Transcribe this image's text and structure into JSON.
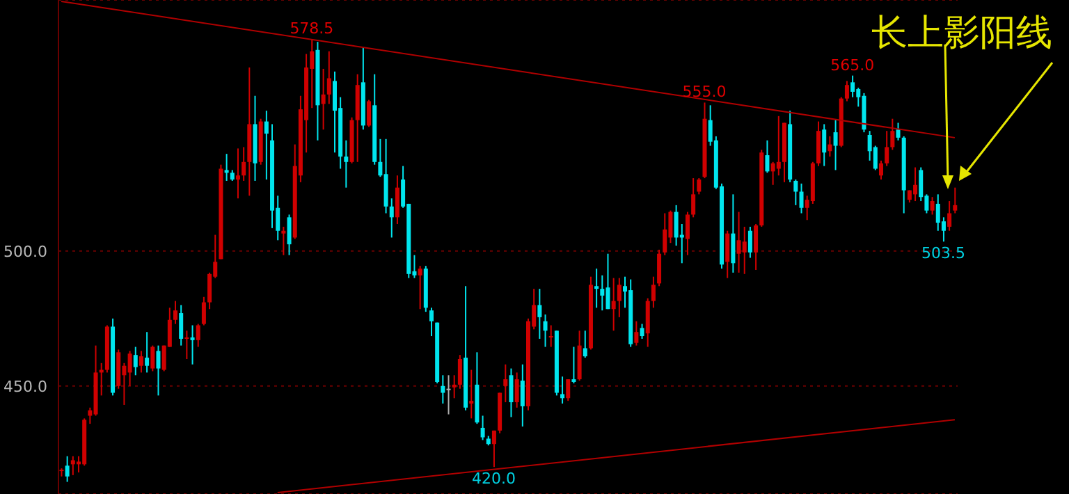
{
  "chart_data": {
    "type": "candlestick",
    "categories": [
      null,
      null,
      null,
      null,
      null,
      null,
      null,
      null,
      null,
      null,
      null,
      null,
      null,
      null,
      null,
      null,
      null,
      null,
      null,
      null,
      null,
      null,
      null,
      null,
      null,
      null,
      null,
      null,
      null,
      null,
      null,
      null,
      null,
      null,
      null,
      null,
      null,
      null,
      null,
      null,
      null,
      null,
      null,
      null,
      null,
      null,
      null,
      null,
      null,
      null,
      null,
      null,
      null,
      null,
      null,
      null,
      null,
      null,
      null,
      null,
      null,
      null,
      null,
      null,
      null,
      null,
      null,
      null,
      null,
      null,
      null,
      null,
      null,
      null,
      null,
      null,
      null,
      null,
      null,
      null,
      null,
      null,
      null,
      null,
      null,
      null,
      null,
      null,
      null,
      null,
      null,
      null,
      null,
      null,
      null,
      null,
      null,
      null,
      null,
      null,
      null,
      null,
      null,
      null,
      null,
      null,
      null,
      null,
      null,
      null,
      null,
      null,
      null,
      null,
      null,
      null,
      null,
      null,
      null,
      null,
      null,
      null,
      null,
      null,
      null,
      null,
      null,
      null,
      null,
      null,
      null,
      null,
      null,
      null,
      null,
      null,
      null,
      null,
      null,
      null,
      null,
      null,
      null,
      null,
      null,
      null,
      null,
      null,
      null,
      null,
      null,
      null,
      null,
      null,
      null,
      null,
      null,
      null
    ],
    "ohlc": [
      [
        418.5,
        419.5,
        416.5,
        419
      ],
      [
        420.5,
        424,
        414.5,
        416.5
      ],
      [
        421,
        424,
        417,
        422.5
      ],
      [
        421,
        424,
        418,
        422
      ],
      [
        421,
        438,
        420.5,
        437.5
      ],
      [
        439,
        442,
        436,
        441
      ],
      [
        439.5,
        465,
        439,
        455
      ],
      [
        455,
        458.5,
        446.5,
        456
      ],
      [
        456,
        472.5,
        455,
        472
      ],
      [
        472,
        475,
        446.5,
        447.5
      ],
      [
        450,
        463.5,
        449,
        462.5
      ],
      [
        454,
        458.5,
        443,
        457.5
      ],
      [
        455,
        463,
        450,
        462
      ],
      [
        461.5,
        464.5,
        454,
        457
      ],
      [
        457.5,
        463,
        455,
        461
      ],
      [
        460.5,
        470,
        455,
        457.5
      ],
      [
        456.5,
        465,
        455.5,
        464.5
      ],
      [
        463,
        465,
        446.5,
        456.5
      ],
      [
        456,
        465,
        455.5,
        465
      ],
      [
        464.5,
        479,
        464.5,
        474.5
      ],
      [
        474.5,
        481.5,
        473,
        478
      ],
      [
        477,
        480,
        465,
        467.5
      ],
      [
        467.5,
        470.5,
        460,
        468
      ],
      [
        468,
        472.5,
        458,
        467
      ],
      [
        467,
        473,
        464.5,
        472.5
      ],
      [
        473,
        483,
        472.5,
        481
      ],
      [
        481,
        492,
        478.5,
        491.5
      ],
      [
        490.5,
        506,
        490,
        496
      ],
      [
        497,
        532,
        497,
        530.5
      ],
      [
        530,
        536,
        526,
        529
      ],
      [
        529,
        530,
        526,
        526.5
      ],
      [
        526.5,
        538,
        519.5,
        528
      ],
      [
        528,
        538.5,
        526,
        533
      ],
      [
        533,
        568,
        520.5,
        547
      ],
      [
        547,
        557.5,
        526,
        532.5
      ],
      [
        533,
        549,
        532,
        548
      ],
      [
        548,
        552,
        526.5,
        543.5
      ],
      [
        541,
        547,
        508.5,
        515
      ],
      [
        516,
        520.5,
        504,
        507.5
      ],
      [
        506.5,
        509,
        498.5,
        507.5
      ],
      [
        512.5,
        513.5,
        498.5,
        502.5
      ],
      [
        505,
        539.5,
        504.5,
        531.5
      ],
      [
        528,
        557.5,
        525.5,
        552.5
      ],
      [
        548.5,
        573,
        536.5,
        568
      ],
      [
        567.5,
        578.5,
        553,
        574
      ],
      [
        574.5,
        577.5,
        541,
        554
      ],
      [
        554.5,
        567.5,
        545,
        558
      ],
      [
        558,
        574,
        554.5,
        564
      ],
      [
        563,
        566.5,
        536.5,
        552
      ],
      [
        553,
        557,
        530.5,
        535
      ],
      [
        535,
        541,
        523.5,
        533
      ],
      [
        533,
        549.5,
        532.5,
        548.5
      ],
      [
        548.5,
        565.5,
        533,
        561.5
      ],
      [
        562.5,
        575.5,
        545,
        546.5
      ],
      [
        546.5,
        556,
        546,
        555.5
      ],
      [
        554,
        565.5,
        532,
        533
      ],
      [
        533,
        541.5,
        527.5,
        528
      ],
      [
        528.5,
        541.5,
        514,
        516.5
      ],
      [
        516.5,
        519.5,
        505,
        512.5
      ],
      [
        512.5,
        528,
        510,
        523.5
      ],
      [
        526.5,
        531.5,
        516,
        516.5
      ],
      [
        517.5,
        517.5,
        490,
        491.5
      ],
      [
        492.5,
        498.5,
        490,
        491
      ],
      [
        491,
        494.5,
        478.5,
        493.5
      ],
      [
        493.5,
        494.5,
        477.5,
        479
      ],
      [
        478,
        479,
        468.5,
        474
      ],
      [
        473.5,
        473.5,
        451,
        451.5
      ],
      [
        450,
        454,
        443.5,
        447.5
      ],
      [
        449,
        454,
        439.5,
        449
      ],
      [
        449.5,
        454,
        445.5,
        450.5
      ],
      [
        450.5,
        461.5,
        449,
        460
      ],
      [
        460.5,
        487,
        441,
        442
      ],
      [
        443.5,
        456,
        438,
        444.5
      ],
      [
        450.5,
        462.5,
        436,
        436.5
      ],
      [
        434.5,
        439,
        430,
        431
      ],
      [
        430.5,
        431.5,
        428,
        428.5
      ],
      [
        428.5,
        433.5,
        420,
        433.5
      ],
      [
        433.5,
        447.5,
        432.5,
        447.5
      ],
      [
        450,
        458,
        444,
        452.5
      ],
      [
        454,
        456.5,
        438.5,
        444
      ],
      [
        444,
        455,
        442,
        452.5
      ],
      [
        452,
        458,
        435,
        442.5
      ],
      [
        442.5,
        475,
        441,
        474
      ],
      [
        472,
        486,
        471,
        480
      ],
      [
        480,
        486,
        467.5,
        475.5
      ],
      [
        474,
        476.5,
        464.5,
        470.5
      ],
      [
        468,
        472.5,
        464.5,
        468.5
      ],
      [
        470.5,
        470.5,
        446.5,
        447.5
      ],
      [
        447,
        453.5,
        443.5,
        445.5
      ],
      [
        445.5,
        452.5,
        444.5,
        452.5
      ],
      [
        452.5,
        464.5,
        451,
        451.5
      ],
      [
        452.5,
        470.5,
        452,
        465
      ],
      [
        464,
        470.5,
        460.5,
        461
      ],
      [
        464,
        490.5,
        463.5,
        487.5
      ],
      [
        487,
        493.5,
        479,
        486
      ],
      [
        486,
        491,
        478,
        483.5
      ],
      [
        486.5,
        499,
        478.5,
        478.5
      ],
      [
        478.5,
        490,
        470.5,
        481.5
      ],
      [
        481.5,
        490,
        475.5,
        487.5
      ],
      [
        487,
        490.5,
        479,
        485
      ],
      [
        485.5,
        489.5,
        464.5,
        465.5
      ],
      [
        466,
        474,
        465,
        470
      ],
      [
        471.5,
        473,
        467.5,
        468.5
      ],
      [
        469.5,
        482.5,
        464.5,
        481.5
      ],
      [
        481.5,
        490.5,
        479,
        487.5
      ],
      [
        488,
        500.5,
        487,
        499
      ],
      [
        499.5,
        514,
        498.5,
        508
      ],
      [
        505,
        515,
        503,
        514.5
      ],
      [
        514.5,
        517,
        502,
        505
      ],
      [
        506,
        510,
        495.5,
        505
      ],
      [
        504.5,
        514.5,
        498.5,
        513.5
      ],
      [
        513.5,
        527,
        512.5,
        521
      ],
      [
        522,
        527,
        521,
        526.5
      ],
      [
        527.5,
        555,
        527,
        549
      ],
      [
        548.5,
        554,
        539,
        540.5
      ],
      [
        541,
        542.5,
        523,
        523.5
      ],
      [
        524,
        525,
        493.5,
        495
      ],
      [
        496,
        507.5,
        490,
        506.5
      ],
      [
        506.5,
        521,
        492,
        495.5
      ],
      [
        499,
        514.5,
        492,
        504
      ],
      [
        499.5,
        509,
        491.5,
        503.5
      ],
      [
        507.5,
        509,
        497.5,
        499.5
      ],
      [
        499.5,
        510,
        493,
        509.5
      ],
      [
        509.5,
        537.5,
        509,
        536.5
      ],
      [
        535.5,
        541,
        529,
        529.5
      ],
      [
        529.5,
        533,
        524.5,
        532.5
      ],
      [
        530.5,
        550,
        528,
        533
      ],
      [
        533,
        547.5,
        525.5,
        547.5
      ],
      [
        547,
        552,
        525.5,
        526.5
      ],
      [
        526,
        526.5,
        517,
        522
      ],
      [
        522,
        525,
        514,
        516
      ],
      [
        516,
        520.5,
        511.5,
        519
      ],
      [
        518.5,
        533,
        517.5,
        532.5
      ],
      [
        532.5,
        548,
        531.5,
        544.5
      ],
      [
        545,
        547,
        531.5,
        536.5
      ],
      [
        537,
        542.5,
        535,
        539.5
      ],
      [
        544,
        548.5,
        530,
        539
      ],
      [
        539,
        557,
        538.5,
        556.5
      ],
      [
        556.5,
        563,
        555.5,
        561.5
      ],
      [
        562.5,
        565,
        557,
        559
      ],
      [
        560,
        560.5,
        553.5,
        557
      ],
      [
        557.5,
        558.5,
        544,
        545
      ],
      [
        543,
        544.5,
        533.5,
        537
      ],
      [
        538.5,
        539,
        530,
        530.5
      ],
      [
        528,
        533.5,
        526.5,
        532.5
      ],
      [
        532.5,
        544.5,
        531.5,
        538.5
      ],
      [
        538.5,
        549,
        537.5,
        544.5
      ],
      [
        545,
        547.5,
        541,
        542
      ],
      [
        542,
        542.5,
        514,
        522.5
      ],
      [
        519,
        522.5,
        518,
        522.5
      ],
      [
        521,
        531,
        518.5,
        524.5
      ],
      [
        530,
        531,
        518.5,
        520
      ],
      [
        520.5,
        521,
        514,
        515
      ],
      [
        515,
        520,
        513.5,
        518.5
      ],
      [
        517.5,
        521,
        507.5,
        510.5
      ],
      [
        511,
        512.5,
        503.5,
        507.5
      ],
      [
        509,
        518.5,
        507.5,
        514
      ],
      [
        515,
        523.5,
        514,
        517
      ]
    ],
    "colors": [
      "#d00000",
      "#00e5ee",
      "#d00000",
      "#d00000",
      "#d00000",
      "#d00000",
      "#d00000",
      "#d00000",
      "#d00000",
      "#00e5ee",
      "#d00000",
      "#d00000",
      "#d00000",
      "#00e5ee",
      "#d00000",
      "#00e5ee",
      "#d00000",
      "#00e5ee",
      "#d00000",
      "#d00000",
      "#d00000",
      "#00e5ee",
      "#d00000",
      "#00e5ee",
      "#d00000",
      "#d00000",
      "#d00000",
      "#d00000",
      "#d00000",
      "#00e5ee",
      "#00e5ee",
      "#d00000",
      "#d00000",
      "#d00000",
      "#00e5ee",
      "#d00000",
      "#00e5ee",
      "#00e5ee",
      "#00e5ee",
      "#d00000",
      "#00e5ee",
      "#d00000",
      "#d00000",
      "#d00000",
      "#d00000",
      "#00e5ee",
      "#d00000",
      "#d00000",
      "#00e5ee",
      "#00e5ee",
      "#00e5ee",
      "#d00000",
      "#d00000",
      "#00e5ee",
      "#d00000",
      "#00e5ee",
      "#00e5ee",
      "#00e5ee",
      "#00e5ee",
      "#d00000",
      "#00e5ee",
      "#00e5ee",
      "#00e5ee",
      "#d00000",
      "#00e5ee",
      "#00e5ee",
      "#00e5ee",
      "#00e5ee",
      "#b0b0b0",
      "#d00000",
      "#d00000",
      "#00e5ee",
      "#d00000",
      "#00e5ee",
      "#00e5ee",
      "#00e5ee",
      "#d00000",
      "#d00000",
      "#d00000",
      "#00e5ee",
      "#d00000",
      "#00e5ee",
      "#d00000",
      "#d00000",
      "#00e5ee",
      "#00e5ee",
      "#d00000",
      "#00e5ee",
      "#00e5ee",
      "#d00000",
      "#00e5ee",
      "#d00000",
      "#00e5ee",
      "#d00000",
      "#00e5ee",
      "#00e5ee",
      "#00e5ee",
      "#d00000",
      "#d00000",
      "#00e5ee",
      "#00e5ee",
      "#d00000",
      "#00e5ee",
      "#d00000",
      "#d00000",
      "#d00000",
      "#d00000",
      "#d00000",
      "#00e5ee",
      "#00e5ee",
      "#d00000",
      "#d00000",
      "#d00000",
      "#d00000",
      "#00e5ee",
      "#00e5ee",
      "#00e5ee",
      "#d00000",
      "#00e5ee",
      "#d00000",
      "#d00000",
      "#00e5ee",
      "#d00000",
      "#d00000",
      "#00e5ee",
      "#d00000",
      "#d00000",
      "#d00000",
      "#00e5ee",
      "#00e5ee",
      "#00e5ee",
      "#d00000",
      "#d00000",
      "#d00000",
      "#00e5ee",
      "#d00000",
      "#00e5ee",
      "#d00000",
      "#d00000",
      "#00e5ee",
      "#00e5ee",
      "#00e5ee",
      "#00e5ee",
      "#00e5ee",
      "#d00000",
      "#d00000",
      "#d00000",
      "#00e5ee",
      "#00e5ee",
      "#d00000",
      "#d00000",
      "#00e5ee",
      "#00e5ee",
      "#d00000",
      "#00e5ee",
      "#00e5ee",
      "#d00000",
      "#d00000"
    ],
    "series": [
      {
        "type": "line",
        "color": "#b00000",
        "values": [
          592.5,
          null,
          null,
          null,
          null,
          null,
          null,
          null,
          null,
          null,
          null,
          null,
          null,
          null,
          null,
          null,
          null,
          null,
          null,
          null,
          null,
          null,
          null,
          null,
          null,
          null,
          null,
          null,
          null,
          null,
          null,
          null,
          null,
          null,
          null,
          null,
          null,
          null,
          null,
          null,
          null,
          null,
          null,
          null,
          null,
          null,
          null,
          null,
          null,
          null,
          null,
          null,
          null,
          null,
          null,
          null,
          null,
          null,
          null,
          null,
          null,
          null,
          null,
          null,
          null,
          null,
          null,
          null,
          null,
          null,
          null,
          null,
          null,
          null,
          null,
          null,
          null,
          null,
          null,
          null,
          null,
          null,
          null,
          null,
          null,
          null,
          null,
          null,
          null,
          null,
          null,
          null,
          null,
          null,
          null,
          null,
          null,
          null,
          null,
          null,
          null,
          null,
          null,
          null,
          null,
          null,
          null,
          null,
          null,
          null,
          null,
          null,
          null,
          null,
          null,
          null,
          null,
          null,
          null,
          null,
          null,
          null,
          null,
          null,
          null,
          null,
          null,
          null,
          null,
          null,
          null,
          null,
          null,
          null,
          null,
          null,
          null,
          null,
          null,
          null,
          null,
          null,
          null,
          null,
          null,
          null,
          null,
          null,
          null,
          null,
          null,
          null,
          null,
          null,
          null,
          null,
          null,
          542
        ]
      },
      {
        "type": "line",
        "color": "#b00000",
        "values": [
          null,
          null,
          null,
          null,
          null,
          null,
          null,
          null,
          null,
          null,
          null,
          null,
          null,
          null,
          null,
          null,
          null,
          null,
          null,
          null,
          null,
          null,
          null,
          null,
          null,
          null,
          null,
          null,
          null,
          null,
          null,
          null,
          null,
          null,
          null,
          null,
          null,
          null,
          410.5,
          null,
          null,
          null,
          null,
          null,
          null,
          null,
          null,
          null,
          null,
          null,
          null,
          null,
          null,
          null,
          null,
          null,
          null,
          null,
          null,
          null,
          null,
          null,
          null,
          null,
          null,
          null,
          null,
          null,
          null,
          null,
          null,
          null,
          null,
          null,
          null,
          null,
          null,
          null,
          null,
          null,
          null,
          null,
          null,
          null,
          null,
          null,
          null,
          null,
          null,
          null,
          null,
          null,
          null,
          null,
          null,
          null,
          null,
          null,
          null,
          null,
          null,
          null,
          null,
          null,
          null,
          null,
          null,
          null,
          null,
          null,
          null,
          null,
          null,
          null,
          null,
          null,
          null,
          null,
          null,
          null,
          null,
          null,
          null,
          null,
          null,
          null,
          null,
          null,
          null,
          null,
          null,
          null,
          null,
          null,
          null,
          null,
          null,
          null,
          null,
          null,
          null,
          null,
          null,
          null,
          null,
          null,
          null,
          null,
          null,
          null,
          null,
          null,
          null,
          null,
          null,
          null,
          null,
          437.5
        ]
      }
    ],
    "ylim": [
      410,
      593
    ],
    "yticks": [
      {
        "value": 450,
        "label": "450.0"
      },
      {
        "value": 500,
        "label": "500.0"
      }
    ],
    "grid": "y",
    "tick_labels": "y",
    "annotations": [
      {
        "text": "578.5",
        "y": 578.5
      },
      {
        "text": "555.0",
        "y": 555
      },
      {
        "text": "565.0",
        "y": 565
      },
      {
        "text": "420.0",
        "y": 420
      },
      {
        "text": "503.5",
        "y": 503.5
      },
      "长上影阳线"
    ]
  }
}
